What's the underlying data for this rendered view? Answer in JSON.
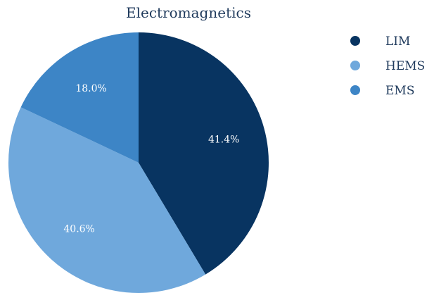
{
  "chart_data": {
    "type": "pie",
    "title": "Electromagnetics",
    "categories": [
      "LIM",
      "HEMS",
      "EMS"
    ],
    "values": [
      41.4,
      40.6,
      18.0
    ],
    "value_labels": [
      "41.4%",
      "40.6%",
      "18.0%"
    ],
    "colors": [
      "#083461",
      "#6fa8dc",
      "#3d85c6"
    ],
    "start_angle": "12 o'clock",
    "direction": "clockwise",
    "legend_placement": "top-right"
  }
}
